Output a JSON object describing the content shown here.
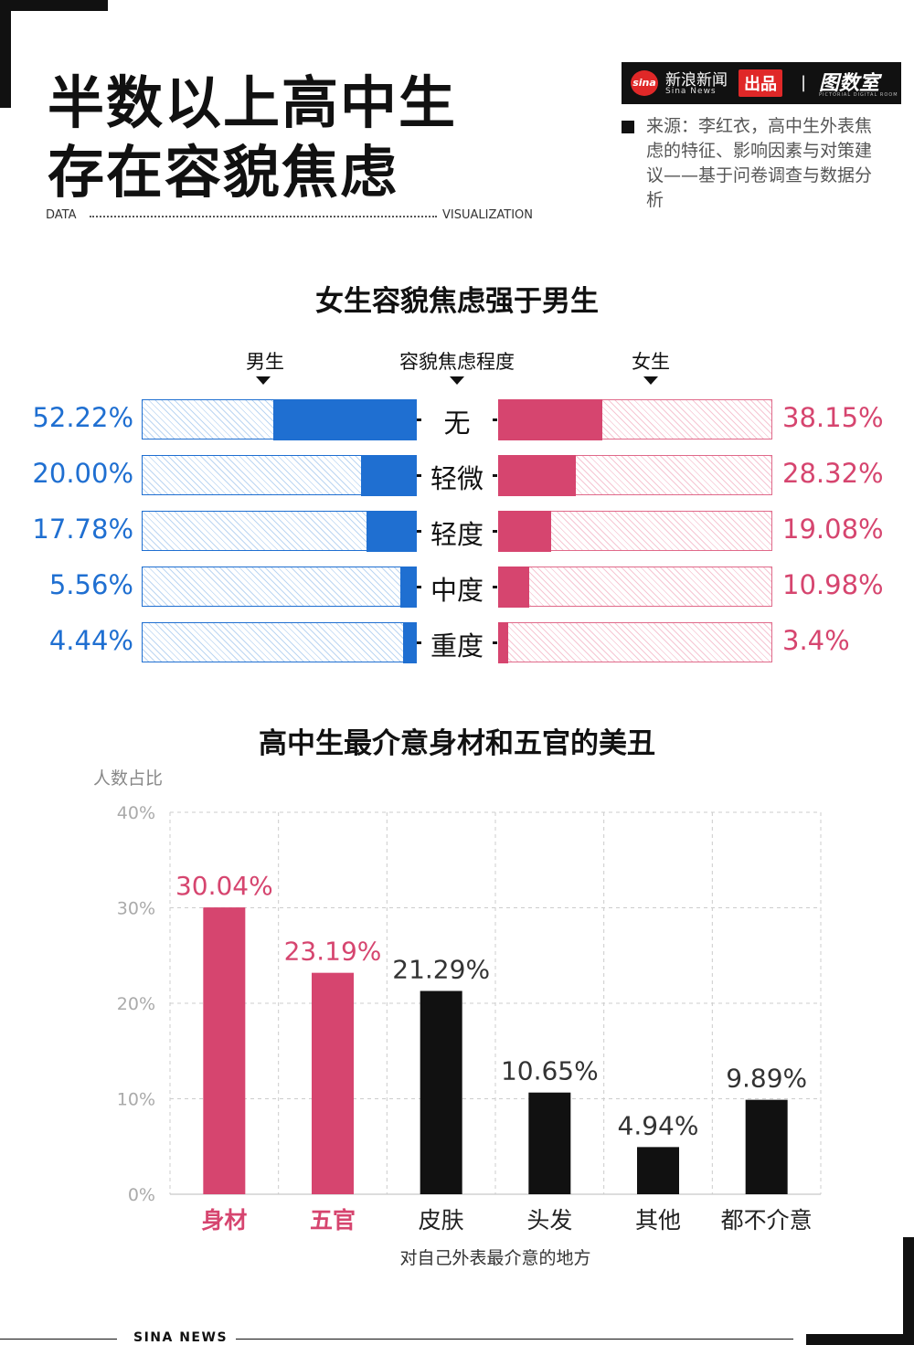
{
  "header": {
    "title_line1": "半数以上高中生",
    "title_line2": "存在容貌焦虑",
    "data_label": "DATA",
    "viz_label": "VISUALIZATION"
  },
  "brand": {
    "logo_text": "sina",
    "name": "新浪新闻",
    "sub": "Sina News",
    "badge": "出品",
    "separator": "|",
    "room": "图数室",
    "room_sub": "PICTORIAL DIGITAL ROOM"
  },
  "source": "来源：李红衣，高中生外表焦虑的特征、影响因素与对策建议——基于问卷调查与数据分析",
  "footer": "SINA NEWS",
  "colors": {
    "male": "#1f6fd1",
    "female": "#d6456f",
    "highlight": "#d6456f",
    "dark": "#111111"
  },
  "chart_data": [
    {
      "type": "bar",
      "orientation": "horizontal-butterfly",
      "title": "女生容貌焦虑强于男生",
      "headers": {
        "male": "男生",
        "level": "容貌焦虑程度",
        "female": "女生"
      },
      "categories": [
        "无",
        "轻微",
        "轻度",
        "中度",
        "重度"
      ],
      "series": [
        {
          "name": "男生",
          "values": [
            52.22,
            20.0,
            17.78,
            5.56,
            4.44
          ],
          "labels": [
            "52.22%",
            "20.00%",
            "17.78%",
            "5.56%",
            "4.44%"
          ]
        },
        {
          "name": "女生",
          "values": [
            38.15,
            28.32,
            19.08,
            10.98,
            3.4
          ],
          "labels": [
            "38.15%",
            "28.32%",
            "19.08%",
            "10.98%",
            "3.4%"
          ]
        }
      ],
      "xlim": [
        0,
        100
      ]
    },
    {
      "type": "bar",
      "title": "高中生最介意身材和五官的美丑",
      "ylabel": "人数占比",
      "xlabel": "对自己外表最介意的地方",
      "categories": [
        "身材",
        "五官",
        "皮肤",
        "头发",
        "其他",
        "都不介意"
      ],
      "values": [
        30.04,
        23.19,
        21.29,
        10.65,
        4.94,
        9.89
      ],
      "value_labels": [
        "30.04%",
        "23.19%",
        "21.29%",
        "10.65%",
        "4.94%",
        "9.89%"
      ],
      "highlighted": [
        true,
        true,
        false,
        false,
        false,
        false
      ],
      "yticks": [
        0,
        10,
        20,
        30,
        40
      ],
      "ytick_labels": [
        "0%",
        "10%",
        "20%",
        "30%",
        "40%"
      ],
      "ylim": [
        0,
        40
      ],
      "grid": true
    }
  ]
}
